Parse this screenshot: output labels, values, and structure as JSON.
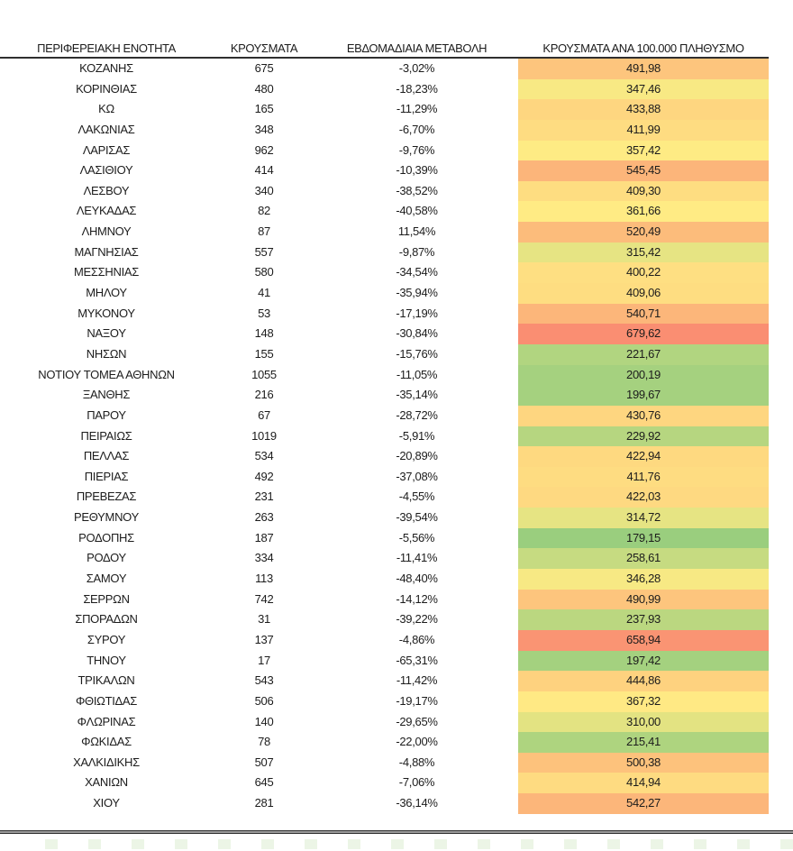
{
  "page": {
    "background": "#ffffff",
    "text_color": "#1c1c1c"
  },
  "chart_data": {
    "type": "table",
    "columns": [
      "ΠΕΡΙΦΕΡΕΙΑΚΗ ΕΝΟΤΗΤΑ",
      "ΚΡΟΥΣΜΑΤΑ",
      "ΕΒΔΟΜΑΔΙΑΙΑ ΜΕΤΑΒΟΛΗ",
      "ΚΡΟΥΣΜΑΤΑ ΑΝΑ 100.000 ΠΛΗΘΥΣΜΟ"
    ],
    "heatmap_column": "ΚΡΟΥΣΜΑΤΑ ΑΝΑ 100.000 ΠΛΗΘΥΣΜΟ",
    "color_scale": {
      "min_color": "#63BE7B",
      "mid_color": "#FFEB84",
      "max_color": "#F8696B",
      "min": 82,
      "mid": 360,
      "max": 807
    },
    "rows": [
      {
        "region": "ΚΟΖΑΝΗΣ",
        "cases": "675",
        "weekly_change": "-3,02%",
        "per_100k": "491,98"
      },
      {
        "region": "ΚΟΡΙΝΘΙΑΣ",
        "cases": "480",
        "weekly_change": "-18,23%",
        "per_100k": "347,46"
      },
      {
        "region": "ΚΩ",
        "cases": "165",
        "weekly_change": "-11,29%",
        "per_100k": "433,88"
      },
      {
        "region": "ΛΑΚΩΝΙΑΣ",
        "cases": "348",
        "weekly_change": "-6,70%",
        "per_100k": "411,99"
      },
      {
        "region": "ΛΑΡΙΣΑΣ",
        "cases": "962",
        "weekly_change": "-9,76%",
        "per_100k": "357,42"
      },
      {
        "region": "ΛΑΣΙΘΙΟΥ",
        "cases": "414",
        "weekly_change": "-10,39%",
        "per_100k": "545,45"
      },
      {
        "region": "ΛΕΣΒΟΥ",
        "cases": "340",
        "weekly_change": "-38,52%",
        "per_100k": "409,30"
      },
      {
        "region": "ΛΕΥΚΑΔΑΣ",
        "cases": "82",
        "weekly_change": "-40,58%",
        "per_100k": "361,66"
      },
      {
        "region": "ΛΗΜΝΟΥ",
        "cases": "87",
        "weekly_change": "11,54%",
        "per_100k": "520,49"
      },
      {
        "region": "ΜΑΓΝΗΣΙΑΣ",
        "cases": "557",
        "weekly_change": "-9,87%",
        "per_100k": "315,42"
      },
      {
        "region": "ΜΕΣΣΗΝΙΑΣ",
        "cases": "580",
        "weekly_change": "-34,54%",
        "per_100k": "400,22"
      },
      {
        "region": "ΜΗΛΟΥ",
        "cases": "41",
        "weekly_change": "-35,94%",
        "per_100k": "409,06"
      },
      {
        "region": "ΜΥΚΟΝΟΥ",
        "cases": "53",
        "weekly_change": "-17,19%",
        "per_100k": "540,71"
      },
      {
        "region": "ΝΑΞΟΥ",
        "cases": "148",
        "weekly_change": "-30,84%",
        "per_100k": "679,62"
      },
      {
        "region": "ΝΗΣΩΝ",
        "cases": "155",
        "weekly_change": "-15,76%",
        "per_100k": "221,67"
      },
      {
        "region": "ΝΟΤΙΟΥ ΤΟΜΕΑ ΑΘΗΝΩΝ",
        "cases": "1055",
        "weekly_change": "-11,05%",
        "per_100k": "200,19"
      },
      {
        "region": "ΞΑΝΘΗΣ",
        "cases": "216",
        "weekly_change": "-35,14%",
        "per_100k": "199,67"
      },
      {
        "region": "ΠΑΡΟΥ",
        "cases": "67",
        "weekly_change": "-28,72%",
        "per_100k": "430,76"
      },
      {
        "region": "ΠΕΙΡΑΙΩΣ",
        "cases": "1019",
        "weekly_change": "-5,91%",
        "per_100k": "229,92"
      },
      {
        "region": "ΠΕΛΛΑΣ",
        "cases": "534",
        "weekly_change": "-20,89%",
        "per_100k": "422,94"
      },
      {
        "region": "ΠΙΕΡΙΑΣ",
        "cases": "492",
        "weekly_change": "-37,08%",
        "per_100k": "411,76"
      },
      {
        "region": "ΠΡΕΒΕΖΑΣ",
        "cases": "231",
        "weekly_change": "-4,55%",
        "per_100k": "422,03"
      },
      {
        "region": "ΡΕΘΥΜΝΟΥ",
        "cases": "263",
        "weekly_change": "-39,54%",
        "per_100k": "314,72"
      },
      {
        "region": "ΡΟΔΟΠΗΣ",
        "cases": "187",
        "weekly_change": "-5,56%",
        "per_100k": "179,15"
      },
      {
        "region": "ΡΟΔΟΥ",
        "cases": "334",
        "weekly_change": "-11,41%",
        "per_100k": "258,61"
      },
      {
        "region": "ΣΑΜΟΥ",
        "cases": "113",
        "weekly_change": "-48,40%",
        "per_100k": "346,28"
      },
      {
        "region": "ΣΕΡΡΩΝ",
        "cases": "742",
        "weekly_change": "-14,12%",
        "per_100k": "490,99"
      },
      {
        "region": "ΣΠΟΡΑΔΩΝ",
        "cases": "31",
        "weekly_change": "-39,22%",
        "per_100k": "237,93"
      },
      {
        "region": "ΣΥΡΟΥ",
        "cases": "137",
        "weekly_change": "-4,86%",
        "per_100k": "658,94"
      },
      {
        "region": "ΤΗΝΟΥ",
        "cases": "17",
        "weekly_change": "-65,31%",
        "per_100k": "197,42"
      },
      {
        "region": "ΤΡΙΚΑΛΩΝ",
        "cases": "543",
        "weekly_change": "-11,42%",
        "per_100k": "444,86"
      },
      {
        "region": "ΦΘΙΩΤΙΔΑΣ",
        "cases": "506",
        "weekly_change": "-19,17%",
        "per_100k": "367,32"
      },
      {
        "region": "ΦΛΩΡΙΝΑΣ",
        "cases": "140",
        "weekly_change": "-29,65%",
        "per_100k": "310,00"
      },
      {
        "region": "ΦΩΚΙΔΑΣ",
        "cases": "78",
        "weekly_change": "-22,00%",
        "per_100k": "215,41"
      },
      {
        "region": "ΧΑΛΚΙΔΙΚΗΣ",
        "cases": "507",
        "weekly_change": "-4,88%",
        "per_100k": "500,38"
      },
      {
        "region": "ΧΑΝΙΩΝ",
        "cases": "645",
        "weekly_change": "-7,06%",
        "per_100k": "414,94"
      },
      {
        "region": "ΧΙΟΥ",
        "cases": "281",
        "weekly_change": "-36,14%",
        "per_100k": "542,27"
      }
    ]
  }
}
